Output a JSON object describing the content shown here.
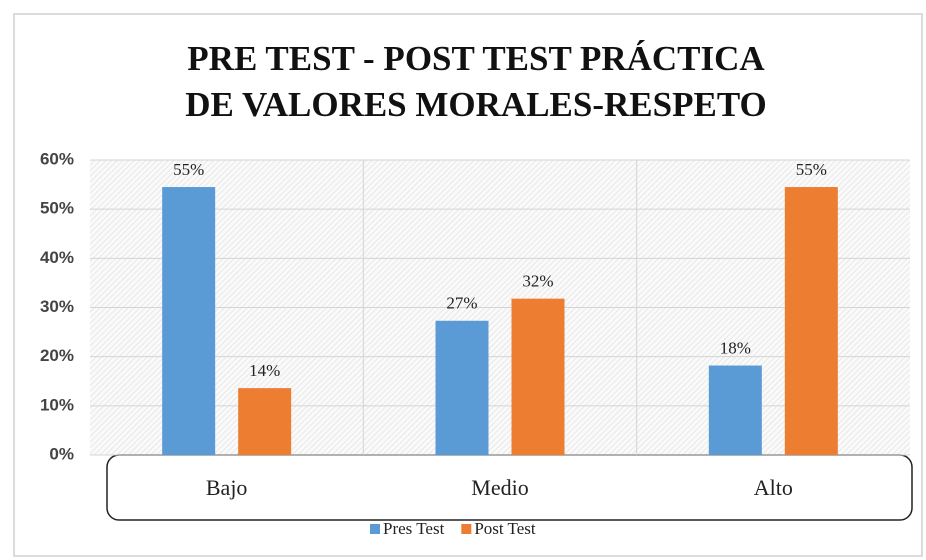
{
  "chart_data": {
    "type": "bar",
    "title": [
      "PRE TEST - POST TEST PRÁCTICA",
      "DE VALORES MORALES-RESPETO"
    ],
    "categories": [
      "Bajo",
      "Medio",
      "Alto"
    ],
    "series": [
      {
        "name": "Pres Test",
        "color": "#5b9bd5",
        "values": [
          54.5,
          27.3,
          18.2
        ],
        "value_labels": [
          "55%",
          "27%",
          "18%"
        ]
      },
      {
        "name": "Post Test",
        "color": "#ed7d31",
        "values": [
          13.6,
          31.8,
          54.5
        ],
        "value_labels": [
          "14%",
          "32%",
          "55%"
        ]
      }
    ],
    "ylim": [
      0,
      60
    ],
    "yticks": [
      {
        "value": 0,
        "label": "0%"
      },
      {
        "value": 10,
        "label": "10%"
      },
      {
        "value": 20,
        "label": "20%"
      },
      {
        "value": 30,
        "label": "30%"
      },
      {
        "value": 40,
        "label": "40%"
      },
      {
        "value": 50,
        "label": "50%"
      },
      {
        "value": 60,
        "label": "60%"
      }
    ],
    "grid": true,
    "legend": "bottom"
  }
}
